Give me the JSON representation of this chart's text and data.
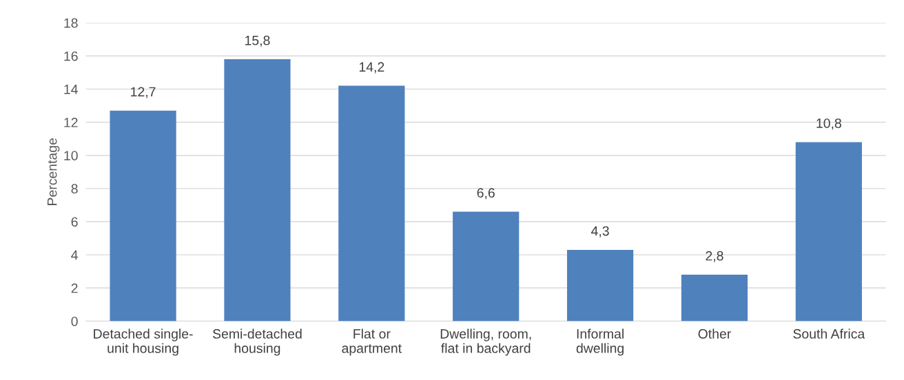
{
  "chart_data": {
    "type": "bar",
    "ylabel": "Percentage",
    "categories": [
      "Detached single-\nunit housing",
      "Semi-detached\nhousing",
      "Flat or\napartment",
      "Dwelling, room,\nflat in backyard",
      "Informal\ndwelling",
      "Other",
      "South Africa"
    ],
    "values": [
      12.7,
      15.8,
      14.2,
      6.6,
      4.3,
      2.8,
      10.8
    ],
    "color": "#4f81bd",
    "value_labels": [
      "12,7",
      "15,8",
      "14,2",
      "6,6",
      "4,3",
      "2,8",
      "10,8"
    ],
    "ylim": [
      0,
      18
    ],
    "yticks": [
      0,
      2,
      4,
      6,
      8,
      10,
      12,
      14,
      16,
      18
    ],
    "grid": "y"
  }
}
